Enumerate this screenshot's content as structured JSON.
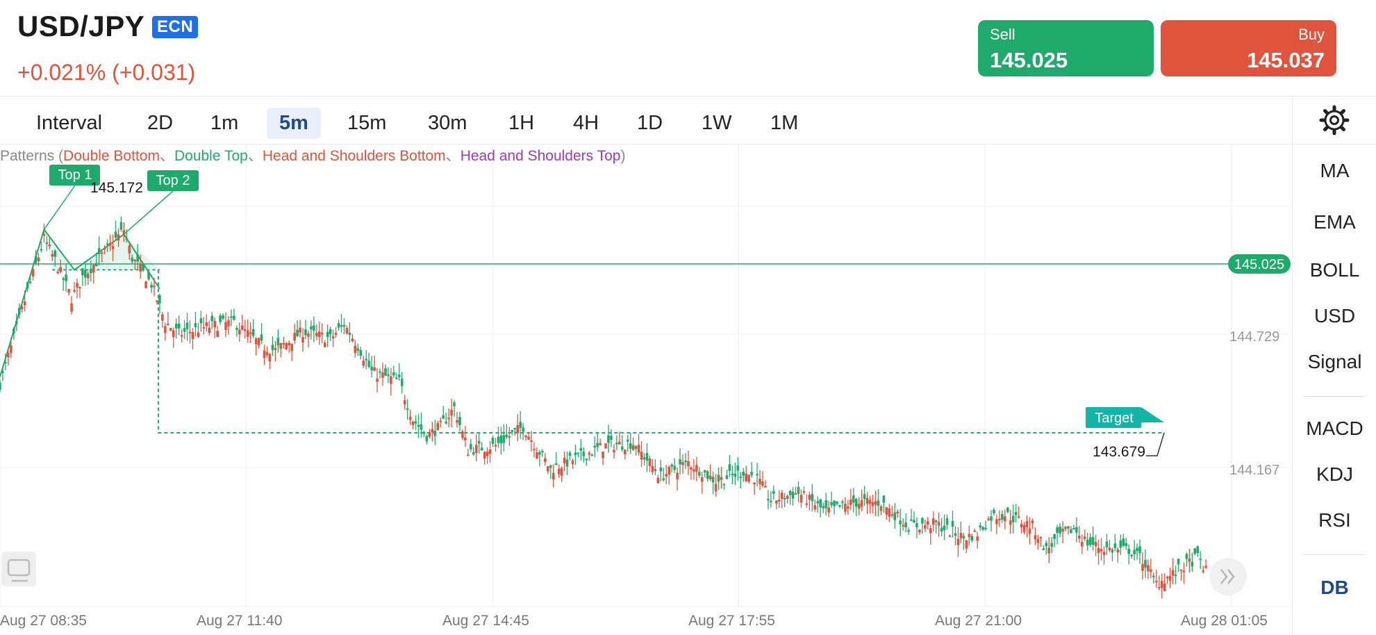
{
  "header": {
    "pair": "USD/JPY",
    "badge": "ECN",
    "change": "+0.021% (+0.031)",
    "sell_label": "Sell",
    "sell_price": "145.025",
    "buy_label": "Buy",
    "buy_price": "145.037"
  },
  "intervals": [
    "Interval",
    "2D",
    "1m",
    "5m",
    "15m",
    "30m",
    "1H",
    "4H",
    "1D",
    "1W",
    "1M"
  ],
  "active_interval": "5m",
  "indicators": [
    "MA",
    "EMA",
    "BOLL",
    "USD",
    "Signal",
    "MACD",
    "KDJ",
    "RSI",
    "DB"
  ],
  "active_indicator": "DB",
  "patterns": {
    "prefix": "Patterns (",
    "items": [
      {
        "label": "Double Bottom",
        "color": "#e0533c"
      },
      {
        "label": "Double Top",
        "color": "#1faa6b"
      },
      {
        "label": "Head and Shoulders Bottom",
        "color": "#e0533c"
      },
      {
        "label": "Head and Shoulders Top",
        "color": "#9b3cb0"
      }
    ],
    "separator": "、",
    "suffix": ")"
  },
  "colors": {
    "up": "#e0533c",
    "down": "#1faa6b",
    "target": "#12b5a8",
    "pattern": "#1faa6b"
  },
  "chart_data": {
    "type": "candlestick",
    "x_labels": [
      "Aug 27 08:35",
      "Aug 27 11:40",
      "Aug 27 14:45",
      "Aug 27 17:55",
      "Aug 27 21:00",
      "Aug 28 01:05"
    ],
    "y_labels": [
      "144.729",
      "144.167"
    ],
    "current_price": "145.025",
    "annotations": {
      "top1_label": "Top 1",
      "top1_value": "145.172",
      "top2_label": "Top 2",
      "target_label": "Target",
      "target_value": "143.679"
    },
    "close_path": [
      [
        0,
        144.52
      ],
      [
        5,
        144.71
      ],
      [
        10,
        144.91
      ],
      [
        16,
        145.13
      ],
      [
        20,
        145.04
      ],
      [
        26,
        144.88
      ],
      [
        30,
        144.97
      ],
      [
        37,
        145.06
      ],
      [
        45,
        145.17
      ],
      [
        48,
        145.05
      ],
      [
        55,
        144.94
      ],
      [
        60,
        144.78
      ],
      [
        65,
        144.73
      ],
      [
        75,
        144.76
      ],
      [
        85,
        144.78
      ],
      [
        95,
        144.68
      ],
      [
        100,
        144.66
      ],
      [
        110,
        144.74
      ],
      [
        120,
        144.71
      ],
      [
        125,
        144.77
      ],
      [
        130,
        144.68
      ],
      [
        135,
        144.57
      ],
      [
        140,
        144.55
      ],
      [
        145,
        144.53
      ],
      [
        150,
        144.37
      ],
      [
        155,
        144.3
      ],
      [
        160,
        144.34
      ],
      [
        165,
        144.42
      ],
      [
        170,
        144.24
      ],
      [
        180,
        144.26
      ],
      [
        190,
        144.34
      ],
      [
        200,
        144.16
      ],
      [
        210,
        144.21
      ],
      [
        220,
        144.26
      ],
      [
        230,
        144.27
      ],
      [
        240,
        144.13
      ],
      [
        250,
        144.19
      ],
      [
        260,
        144.11
      ],
      [
        270,
        144.15
      ],
      [
        275,
        144.12
      ],
      [
        280,
        144.03
      ],
      [
        290,
        144.06
      ],
      [
        300,
        143.98
      ],
      [
        310,
        144.02
      ],
      [
        320,
        144.02
      ],
      [
        330,
        143.92
      ],
      [
        340,
        143.93
      ],
      [
        350,
        143.87
      ],
      [
        355,
        143.89
      ],
      [
        360,
        143.96
      ],
      [
        365,
        143.97
      ],
      [
        375,
        143.92
      ],
      [
        380,
        143.82
      ],
      [
        385,
        143.88
      ],
      [
        390,
        143.91
      ],
      [
        395,
        143.85
      ],
      [
        400,
        143.83
      ],
      [
        405,
        143.82
      ],
      [
        410,
        143.82
      ],
      [
        415,
        143.78
      ],
      [
        420,
        143.68
      ],
      [
        425,
        143.71
      ],
      [
        430,
        143.75
      ],
      [
        435,
        143.79
      ],
      [
        438,
        143.73
      ]
    ],
    "top1_index": 16,
    "top2_index": 45,
    "neckline_value": 145.0,
    "neckline_start_index": 19,
    "neckline_end_index": 58,
    "target_end_index": 423
  }
}
